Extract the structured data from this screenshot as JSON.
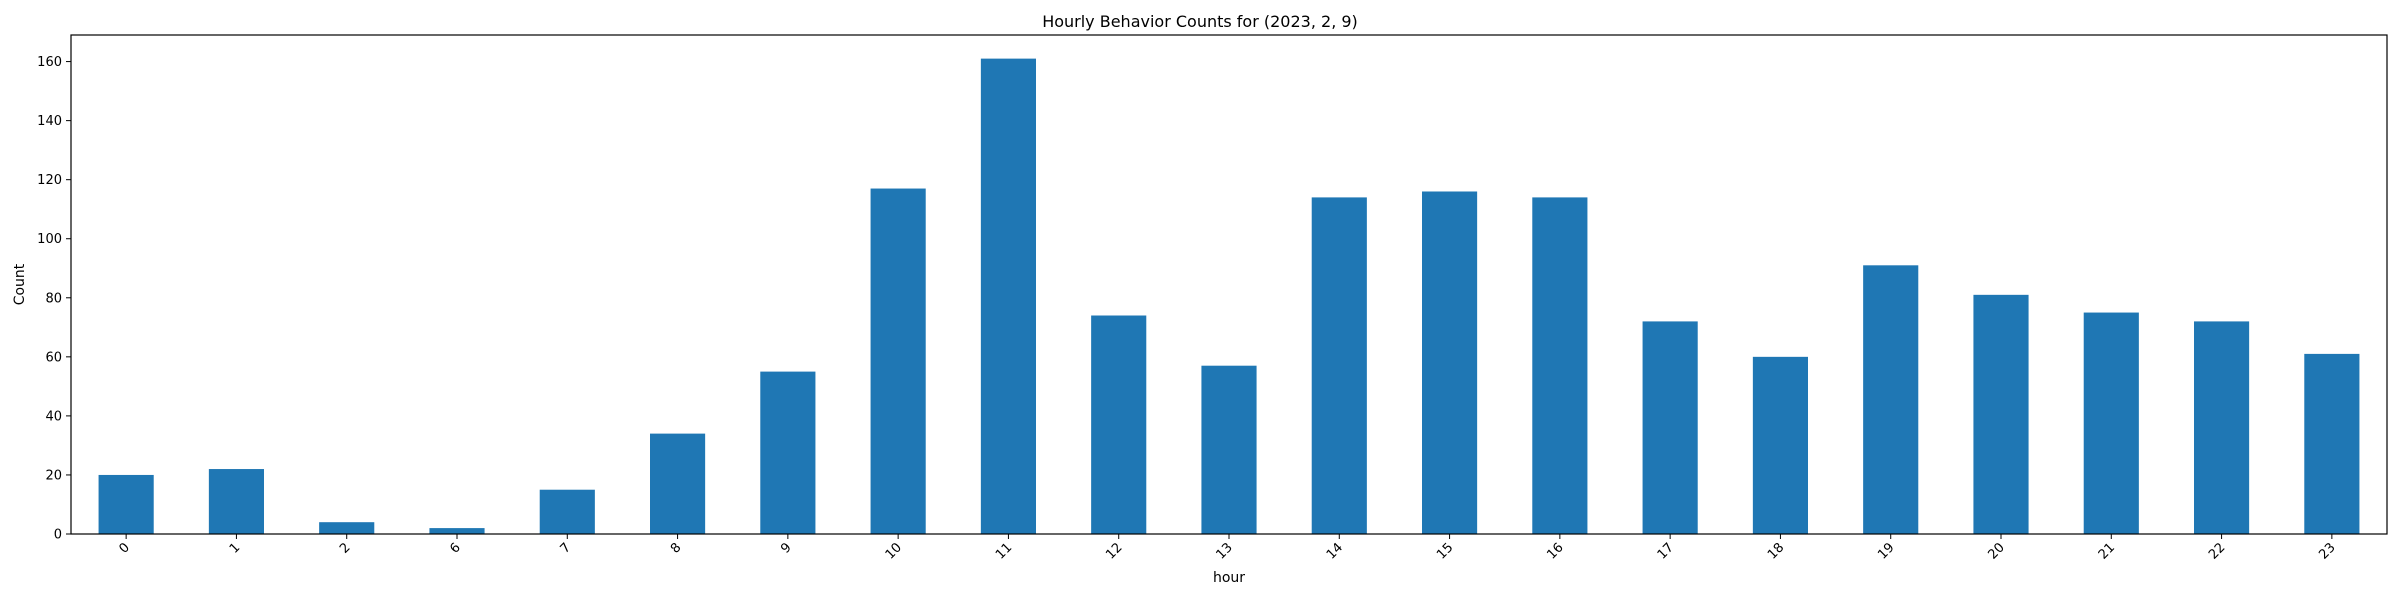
{
  "chart_data": {
    "type": "bar",
    "title": "Hourly Behavior Counts for (2023, 2, 9)",
    "xlabel": "hour",
    "ylabel": "Count",
    "categories": [
      "0",
      "1",
      "2",
      "6",
      "7",
      "8",
      "9",
      "10",
      "11",
      "12",
      "13",
      "14",
      "15",
      "16",
      "17",
      "18",
      "19",
      "20",
      "21",
      "22",
      "23"
    ],
    "values": [
      20,
      22,
      4,
      2,
      15,
      34,
      55,
      117,
      161,
      74,
      57,
      114,
      116,
      114,
      72,
      60,
      91,
      81,
      75,
      72,
      61
    ],
    "yticks": [
      0,
      20,
      40,
      60,
      80,
      100,
      120,
      140,
      160
    ],
    "ylim": [
      0,
      169
    ],
    "bar_color": "#1f77b4",
    "grid": false,
    "legend": "none",
    "xtick_rotation": "45 degrees"
  }
}
